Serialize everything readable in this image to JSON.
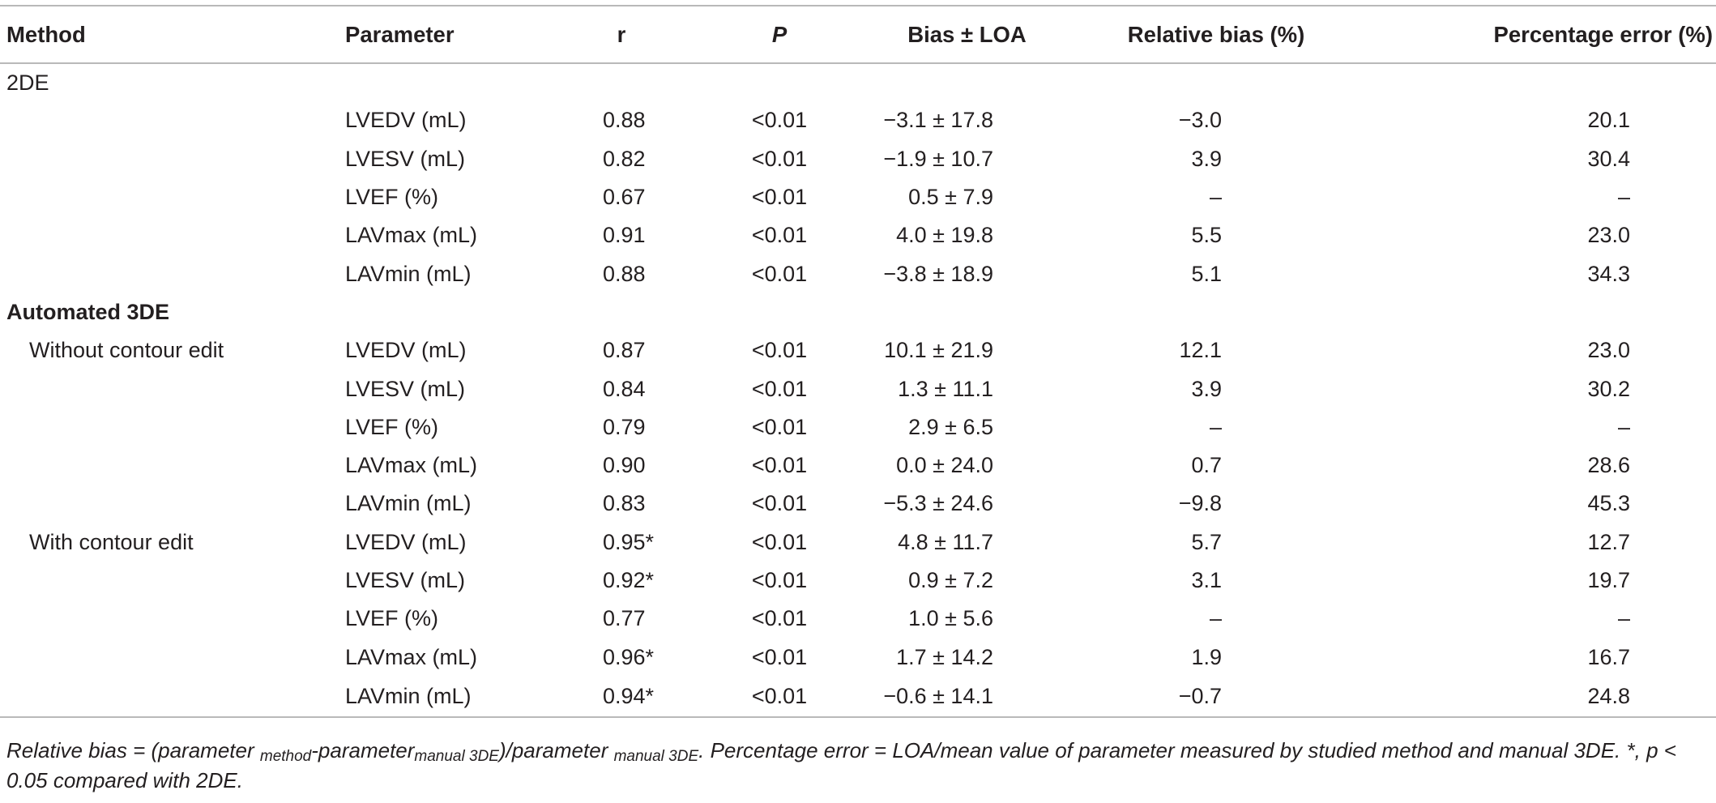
{
  "table": {
    "headers": [
      "Method",
      "Parameter",
      "r",
      "P",
      "Bias ± LOA",
      "Relative bias (%)",
      "Percentage error (%)"
    ],
    "rows": [
      {
        "method": "2DE",
        "method_style": "plain",
        "param": "",
        "r": "",
        "p": "",
        "bias": "",
        "rel": "",
        "perr": ""
      },
      {
        "method": "",
        "param": "LVEDV (mL)",
        "r": "0.88",
        "p": "<0.01",
        "bias": "−3.1 ± 17.8",
        "rel": "−3.0",
        "perr": "20.1"
      },
      {
        "method": "",
        "param": "LVESV (mL)",
        "r": "0.82",
        "p": "<0.01",
        "bias": "−1.9 ± 10.7",
        "rel": "3.9",
        "perr": "30.4"
      },
      {
        "method": "",
        "param": "LVEF (%)",
        "r": "0.67",
        "p": "<0.01",
        "bias": "0.5 ± 7.9",
        "rel": "–",
        "perr": "–"
      },
      {
        "method": "",
        "param": "LAVmax (mL)",
        "r": "0.91",
        "p": "<0.01",
        "bias": "4.0 ± 19.8",
        "rel": "5.5",
        "perr": "23.0"
      },
      {
        "method": "",
        "param": "LAVmin (mL)",
        "r": "0.88",
        "p": "<0.01",
        "bias": "−3.8 ± 18.9",
        "rel": "5.1",
        "perr": "34.3"
      },
      {
        "method": "Automated 3DE",
        "method_style": "bold",
        "param": "",
        "r": "",
        "p": "",
        "bias": "",
        "rel": "",
        "perr": ""
      },
      {
        "method": "Without contour edit",
        "method_style": "sub",
        "param": "LVEDV (mL)",
        "r": "0.87",
        "p": "<0.01",
        "bias": "10.1 ± 21.9",
        "rel": "12.1",
        "perr": "23.0"
      },
      {
        "method": "",
        "param": "LVESV (mL)",
        "r": "0.84",
        "p": "<0.01",
        "bias": "1.3 ± 11.1",
        "rel": "3.9",
        "perr": "30.2"
      },
      {
        "method": "",
        "param": "LVEF (%)",
        "r": "0.79",
        "p": "<0.01",
        "bias": "2.9 ± 6.5",
        "rel": "–",
        "perr": "–"
      },
      {
        "method": "",
        "param": "LAVmax (mL)",
        "r": "0.90",
        "p": "<0.01",
        "bias": "0.0 ± 24.0",
        "rel": "0.7",
        "perr": "28.6"
      },
      {
        "method": "",
        "param": "LAVmin (mL)",
        "r": "0.83",
        "p": "<0.01",
        "bias": "−5.3 ± 24.6",
        "rel": "−9.8",
        "perr": "45.3"
      },
      {
        "method": "With contour edit",
        "method_style": "sub",
        "param": "LVEDV (mL)",
        "r": "0.95*",
        "p": "<0.01",
        "bias": "4.8 ± 11.7",
        "rel": "5.7",
        "perr": "12.7"
      },
      {
        "method": "",
        "param": "LVESV (mL)",
        "r": "0.92*",
        "p": "<0.01",
        "bias": "0.9 ± 7.2",
        "rel": "3.1",
        "perr": "19.7"
      },
      {
        "method": "",
        "param": "LVEF (%)",
        "r": "0.77",
        "p": "<0.01",
        "bias": "1.0 ± 5.6",
        "rel": "–",
        "perr": "–"
      },
      {
        "method": "",
        "param": "LAVmax (mL)",
        "r": "0.96*",
        "p": "<0.01",
        "bias": "1.7 ± 14.2",
        "rel": "1.9",
        "perr": "16.7"
      },
      {
        "method": "",
        "param": "LAVmin (mL)",
        "r": "0.94*",
        "p": "<0.01",
        "bias": "−0.6 ± 14.1",
        "rel": "−0.7",
        "perr": "24.8"
      }
    ]
  },
  "footnote": {
    "t1": "Relative bias = (parameter ",
    "s1": "method",
    "t2": "-parameter",
    "s2": "manual 3DE",
    "t3": ")/parameter ",
    "s3": "manual 3DE",
    "t4": ". Percentage error = LOA/mean value of parameter measured by studied method and manual 3DE. *, p < 0.05 compared with 2DE."
  }
}
